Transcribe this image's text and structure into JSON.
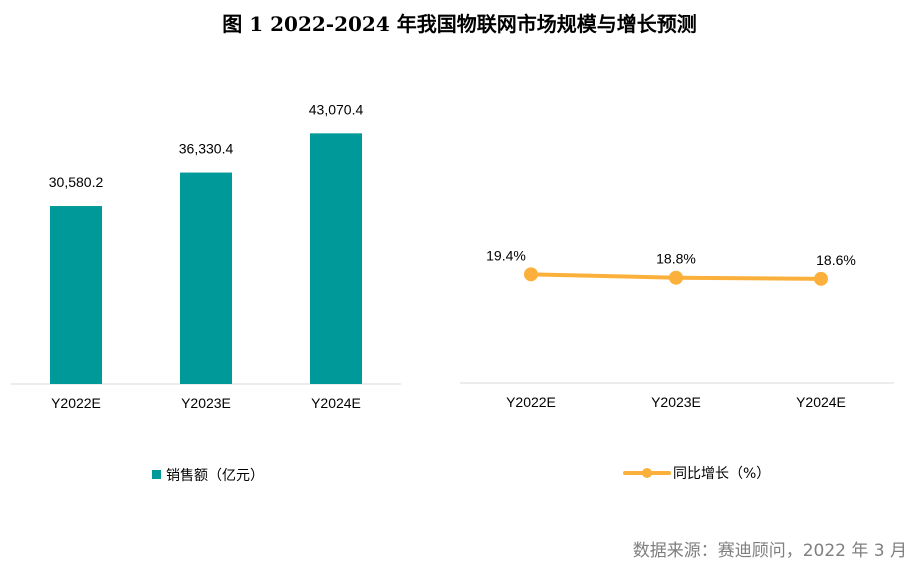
{
  "title": "图 1   2022-2024 年我国物联网市场规模与增长预测",
  "source": "数据来源：赛迪顾问，2022 年 3 月",
  "chart_data": [
    {
      "type": "bar",
      "categories": [
        "Y2022E",
        "Y2023E",
        "Y2024E"
      ],
      "series": [
        {
          "name": "销售额（亿元）",
          "values": [
            30580.2,
            36330.4,
            43070.4
          ]
        }
      ],
      "data_labels": [
        "30,580.2",
        "36,330.4",
        "43,070.4"
      ],
      "ylim": [
        0,
        50000
      ],
      "grid": false,
      "legend": "bottom",
      "color": "#009999"
    },
    {
      "type": "line",
      "categories": [
        "Y2022E",
        "Y2023E",
        "Y2024E"
      ],
      "series": [
        {
          "name": "同比增长（%）",
          "values": [
            19.4,
            18.8,
            18.6
          ]
        }
      ],
      "data_labels": [
        "19.4%",
        "18.8%",
        "18.6%"
      ],
      "ylim": [
        0,
        25
      ],
      "grid": false,
      "legend": "bottom",
      "color": "#FBB03B"
    }
  ]
}
